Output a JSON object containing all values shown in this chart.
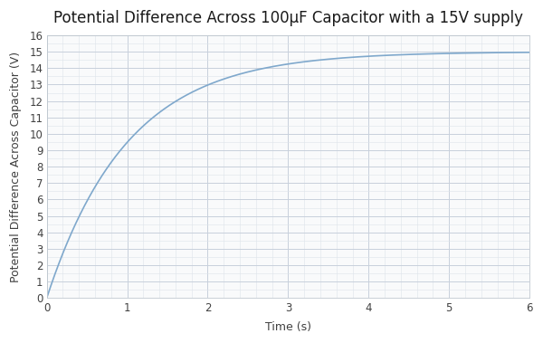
{
  "title": "Potential Difference Across 100μF Capacitor with a 15V supply",
  "xlabel": "Time (s)",
  "ylabel": "Potential Difference Across Capacitor (V)",
  "V_supply": 15,
  "tau": 1,
  "t_start": 0,
  "t_end": 6,
  "ylim": [
    0,
    16
  ],
  "xlim": [
    0,
    6
  ],
  "yticks": [
    0,
    1,
    2,
    3,
    4,
    5,
    6,
    7,
    8,
    9,
    10,
    11,
    12,
    13,
    14,
    15,
    16
  ],
  "xticks": [
    0,
    1,
    2,
    3,
    4,
    5,
    6
  ],
  "line_color": "#7fa8cc",
  "line_width": 1.2,
  "grid_major_color": "#c8d0dc",
  "grid_minor_color": "#dde3ea",
  "plot_bg_color": "#f9fafb",
  "fig_bg_color": "#ffffff",
  "title_fontsize": 12,
  "label_fontsize": 9,
  "tick_fontsize": 8.5,
  "figsize": [
    6.0,
    3.79
  ],
  "dpi": 100
}
